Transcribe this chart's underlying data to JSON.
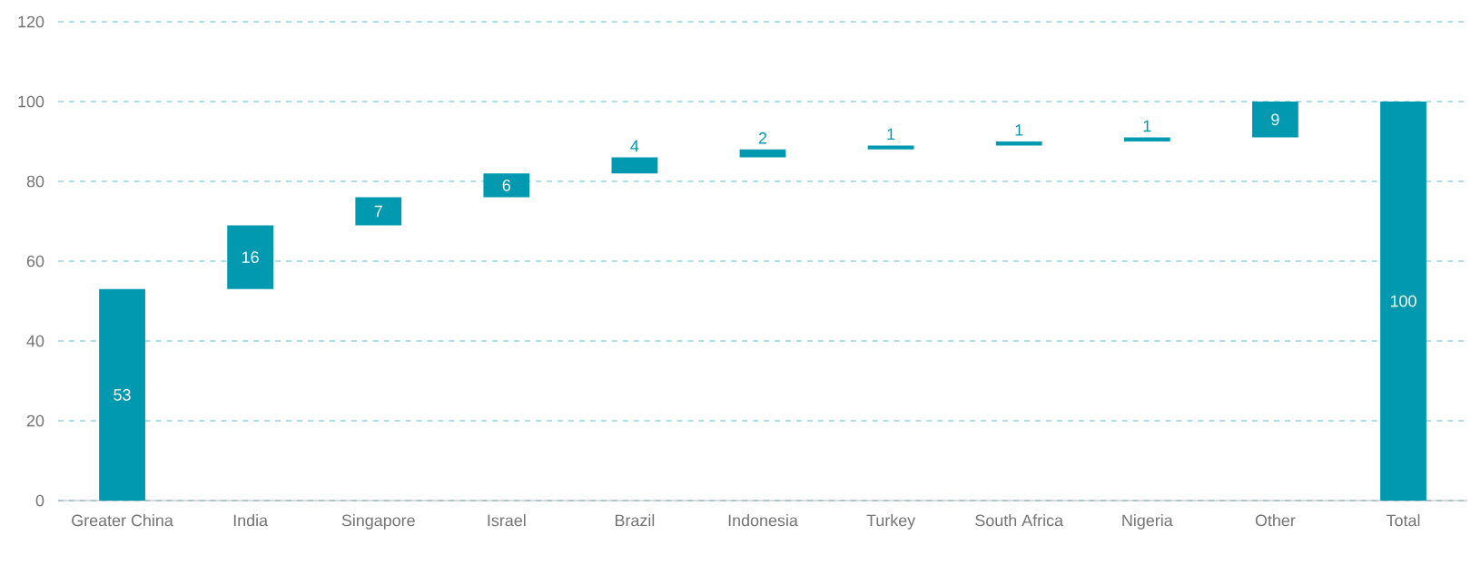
{
  "chart_data": {
    "type": "bar",
    "categories": [
      "Greater China",
      "India",
      "Singapore",
      "Israel",
      "Brazil",
      "Indonesia",
      "Turkey",
      "South Africa",
      "Nigeria",
      "Other",
      "Total"
    ],
    "values": [
      53,
      16,
      7,
      6,
      4,
      2,
      1,
      1,
      1,
      9,
      100
    ],
    "base": [
      0,
      53,
      69,
      76,
      82,
      86,
      88,
      89,
      90,
      91,
      0
    ],
    "color": "#0099b0",
    "ylim": [
      0,
      120
    ],
    "yticks": [
      0,
      20,
      40,
      60,
      80,
      100,
      120
    ],
    "grid": "y",
    "data_labels": true
  }
}
